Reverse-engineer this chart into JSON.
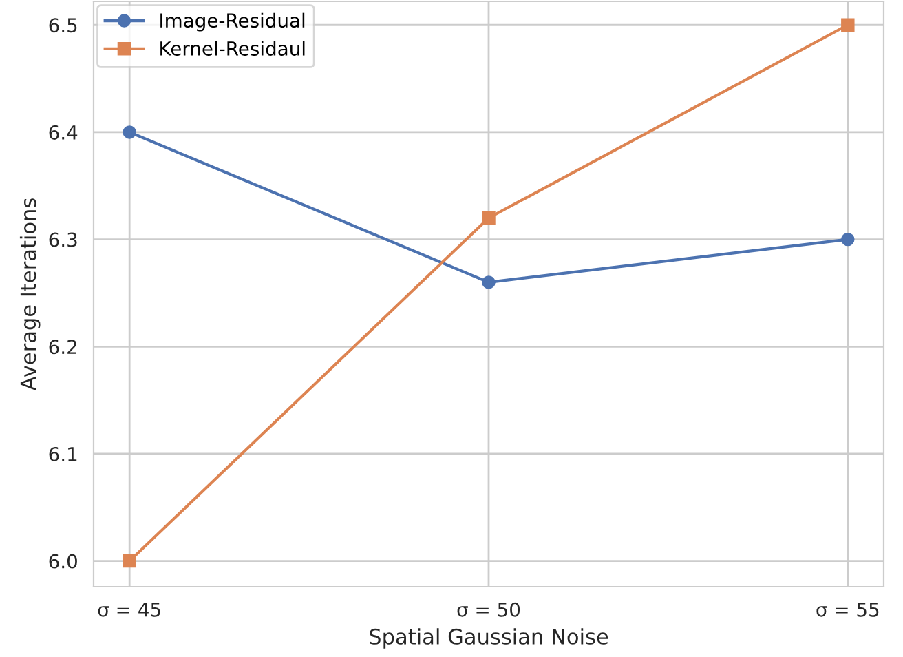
{
  "chart_data": {
    "type": "line",
    "xlabel": "Spatial Gaussian Noise",
    "ylabel": "Average Iterations",
    "categories": [
      "σ = 45",
      "σ = 50",
      "σ = 55"
    ],
    "series": [
      {
        "name": "Image-Residual",
        "color": "#4c72b0",
        "values": [
          6.4,
          6.26,
          6.3
        ],
        "marker": "circle"
      },
      {
        "name": "Kernel-Residaul",
        "color": "#dd8452",
        "values": [
          6.0,
          6.32,
          6.5
        ],
        "marker": "square"
      }
    ],
    "ylim": [
      5.976,
      6.522
    ],
    "yticks": [
      {
        "value": 6.0,
        "label": "6.0"
      },
      {
        "value": 6.1,
        "label": "6.1"
      },
      {
        "value": 6.2,
        "label": "6.2"
      },
      {
        "value": 6.3,
        "label": "6.3"
      },
      {
        "value": 6.4,
        "label": "6.4"
      },
      {
        "value": 6.5,
        "label": "6.5"
      }
    ],
    "grid": true,
    "legend": "top left",
    "line_style": "solid"
  }
}
